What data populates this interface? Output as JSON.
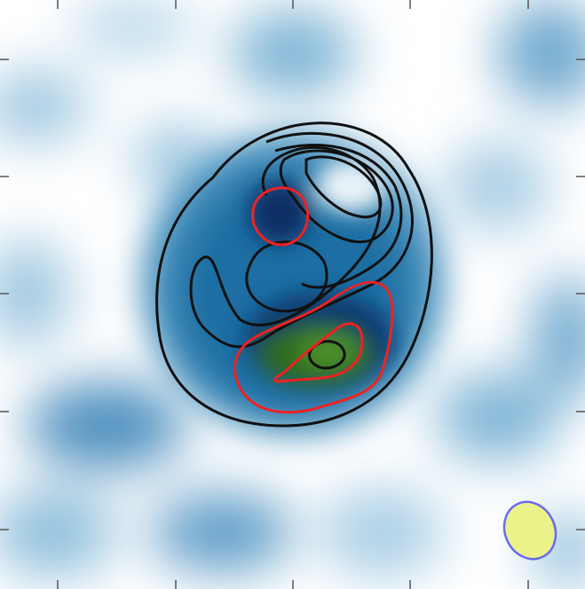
{
  "image": {
    "kind": "radio-astronomy-style intensity map with overlaid contours",
    "colormap": [
      "#ffffff",
      "#d9eaf4",
      "#8fbfdc",
      "#3f8dbb",
      "#0f5e93",
      "#0a2f63",
      "#2f6b1f",
      "#3d8a2a"
    ],
    "contour_colors": {
      "black": "#111111",
      "red": "#ee2222"
    },
    "beam": {
      "fill": "#ecf28a",
      "stroke": "#6a6af0"
    },
    "tick_color": "#555555"
  }
}
